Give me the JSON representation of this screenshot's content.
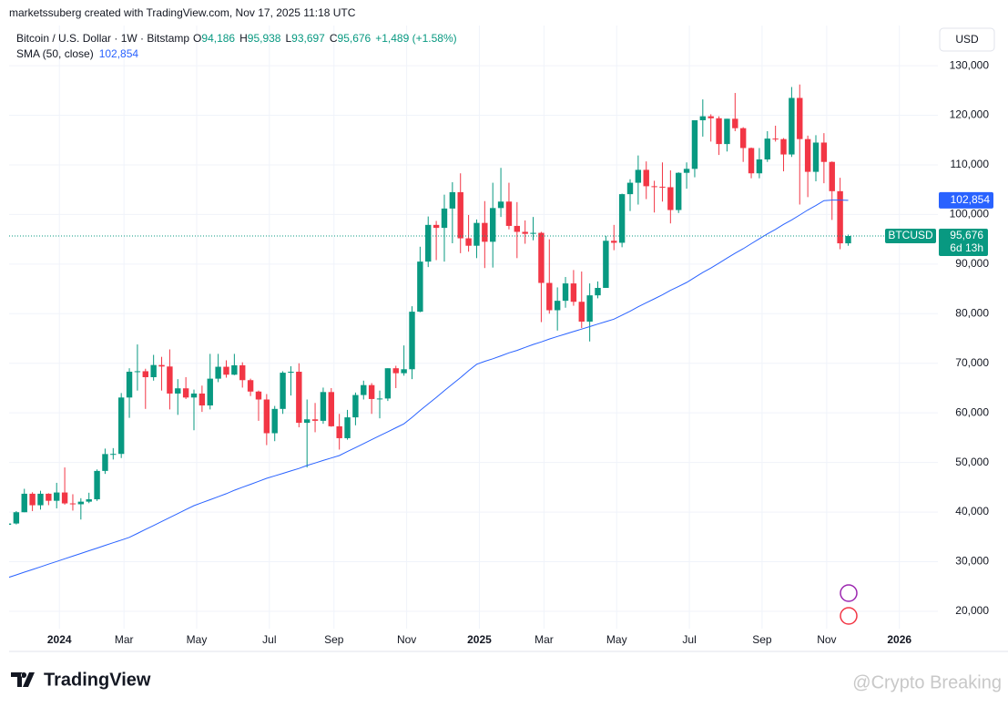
{
  "header": "marketssuberg created with TradingView.com, Nov 17, 2025 11:18 UTC",
  "currency": "USD",
  "brand": "TradingView",
  "watermark": "@Crypto Breaking",
  "chart_data": {
    "type": "candlestick",
    "title": "Bitcoin / U.S. Dollar · 1W · Bitstamp",
    "symbol": "BTCUSD",
    "ohlc_legend": [
      {
        "key": "O",
        "label": "94,186"
      },
      {
        "key": "H",
        "label": "95,938"
      },
      {
        "key": "L",
        "label": "93,697"
      },
      {
        "key": "C",
        "label": "95,676"
      }
    ],
    "change_label": "+1,489 (+1.58%)",
    "last_price_label": "95,676",
    "countdown": "6d 13h",
    "up_color": "#089981",
    "down_color": "#f23645",
    "categories": [
      null,
      null,
      null,
      null,
      null,
      null,
      "2024",
      null,
      null,
      null,
      null,
      null,
      null,
      null,
      "Mar",
      null,
      null,
      null,
      null,
      null,
      null,
      null,
      null,
      "May",
      null,
      null,
      null,
      null,
      null,
      null,
      null,
      null,
      "Jul",
      null,
      null,
      null,
      null,
      null,
      null,
      null,
      "Sep",
      null,
      null,
      null,
      null,
      null,
      null,
      null,
      null,
      "Nov",
      null,
      null,
      null,
      null,
      null,
      null,
      null,
      null,
      "2025",
      null,
      null,
      null,
      null,
      null,
      null,
      null,
      "Mar",
      null,
      null,
      null,
      null,
      null,
      null,
      null,
      null,
      "May",
      null,
      null,
      null,
      null,
      null,
      null,
      null,
      null,
      "Jul",
      null,
      null,
      null,
      null,
      null,
      null,
      null,
      null,
      "Sep",
      null,
      null,
      null,
      null,
      null,
      null,
      null,
      "Nov",
      null,
      null,
      null,
      null,
      null,
      null,
      null,
      null,
      "2026"
    ],
    "open": [
      37450,
      37700,
      39970,
      43700,
      41380,
      43700,
      42280,
      43950,
      41750,
      41580,
      42100,
      42580,
      48300,
      51700,
      51730,
      63100,
      68300,
      68400,
      67200,
      69650,
      69350,
      63900,
      64950,
      63100,
      63900,
      61500,
      66900,
      69300,
      67700,
      69600,
      66600,
      64300,
      62700,
      55900,
      60800,
      68100,
      68300,
      58000,
      58700,
      58400,
      64200,
      57300,
      54900,
      59100,
      63600,
      65600,
      62800,
      62900,
      69000,
      68000,
      68800,
      80400,
      90500,
      97900,
      97300,
      101200,
      104500,
      95200,
      93700,
      98300,
      94500,
      101300,
      102600,
      97700,
      96500,
      96100,
      96300,
      86200,
      80700,
      82600,
      86100,
      82400,
      78400,
      83700,
      85200,
      94700,
      94300,
      104100,
      106400,
      109000,
      105700,
      105600,
      105500,
      100900,
      108400,
      109200,
      119000,
      119800,
      119400,
      114200,
      119300,
      117400,
      113400,
      108300,
      111100,
      115300,
      115200,
      112100,
      123500,
      115200,
      108600,
      114500,
      110600,
      104700,
      94186,
      null,
      null,
      null,
      null,
      null,
      null
    ],
    "high": [
      38400,
      40200,
      44700,
      44000,
      44300,
      43800,
      45900,
      49000,
      43600,
      42800,
      43900,
      48600,
      52800,
      52900,
      64000,
      69000,
      73800,
      68900,
      71700,
      71300,
      72800,
      66800,
      67200,
      64700,
      65500,
      71900,
      71900,
      70600,
      71900,
      70200,
      66900,
      64500,
      63800,
      61400,
      68400,
      69400,
      70000,
      62700,
      62000,
      65100,
      65000,
      59800,
      60600,
      64100,
      66500,
      66000,
      64500,
      69000,
      69500,
      73600,
      81500,
      93500,
      99600,
      98700,
      104000,
      106500,
      108300,
      99900,
      99000,
      102700,
      106400,
      109400,
      106400,
      102500,
      98800,
      99500,
      96500,
      95000,
      85300,
      87400,
      88800,
      88500,
      86100,
      86500,
      95700,
      97900,
      104200,
      107100,
      111900,
      110700,
      106800,
      110500,
      108900,
      108500,
      110500,
      119000,
      123200,
      120200,
      119800,
      119300,
      124500,
      117600,
      113500,
      113400,
      116800,
      117900,
      115400,
      125700,
      126200,
      115900,
      116000,
      116400,
      110700,
      107400,
      95938,
      null,
      null,
      null,
      null,
      null,
      null
    ],
    "low": [
      36700,
      37500,
      39970,
      40200,
      40500,
      41400,
      40750,
      41500,
      40300,
      38500,
      41800,
      42250,
      47700,
      50600,
      50900,
      59000,
      64500,
      60800,
      66500,
      64500,
      60700,
      59600,
      62800,
      56500,
      60200,
      60700,
      66200,
      67100,
      67600,
      65100,
      63400,
      58400,
      53500,
      54300,
      59800,
      63500,
      57100,
      49000,
      56100,
      57800,
      57200,
      52600,
      54600,
      57500,
      62700,
      59800,
      58900,
      62400,
      65000,
      67500,
      66800,
      80300,
      89400,
      90800,
      90500,
      94200,
      92200,
      92500,
      91200,
      89200,
      89300,
      99500,
      97000,
      91200,
      94100,
      94800,
      78300,
      80000,
      76600,
      81200,
      81600,
      77100,
      74400,
      83100,
      85200,
      92800,
      93400,
      100700,
      102000,
      103100,
      100400,
      102600,
      98200,
      100300,
      105200,
      107500,
      115700,
      114700,
      112000,
      112700,
      116800,
      110600,
      107300,
      107300,
      110600,
      114700,
      108700,
      111600,
      102000,
      103500,
      106700,
      106300,
      98900,
      93000,
      93697,
      null,
      null,
      null,
      null,
      null,
      null
    ],
    "close": [
      37700,
      39970,
      43700,
      41380,
      43700,
      42280,
      43950,
      41750,
      41580,
      42100,
      42580,
      48300,
      51700,
      51730,
      63100,
      68300,
      68400,
      67200,
      69650,
      69350,
      63900,
      64950,
      63100,
      63900,
      61500,
      66900,
      69300,
      67700,
      69600,
      66600,
      64300,
      62700,
      55900,
      60800,
      68100,
      68300,
      58000,
      58700,
      58400,
      64200,
      57300,
      54900,
      59100,
      63600,
      65600,
      62800,
      62900,
      69000,
      68000,
      68800,
      80400,
      90500,
      97900,
      97300,
      101200,
      104500,
      95200,
      93700,
      98300,
      94500,
      101300,
      102600,
      97700,
      96500,
      96100,
      96300,
      86200,
      80700,
      82600,
      86100,
      82400,
      78400,
      83700,
      85200,
      94700,
      94300,
      104100,
      106400,
      109000,
      105700,
      105600,
      105500,
      100900,
      108400,
      109200,
      119000,
      119800,
      119400,
      114200,
      119300,
      117400,
      113400,
      108300,
      111100,
      115300,
      115200,
      112100,
      123500,
      115200,
      108600,
      114500,
      110600,
      104700,
      94186,
      95676,
      null,
      null,
      null,
      null,
      null,
      null
    ],
    "sma": {
      "name": "SMA (50, close)",
      "color": "#2962ff",
      "value_label": "102,854",
      "values": [
        26800,
        27340,
        27880,
        28420,
        28960,
        29500,
        30040,
        30580,
        31120,
        31660,
        32200,
        32740,
        33280,
        33820,
        34360,
        34900,
        35700,
        36500,
        37300,
        38100,
        38900,
        39700,
        40500,
        41300,
        41900,
        42500,
        43100,
        43700,
        44400,
        45000,
        45600,
        46200,
        46800,
        47300,
        47800,
        48300,
        48800,
        49400,
        49900,
        50400,
        50900,
        51400,
        52200,
        53000,
        53800,
        54600,
        55400,
        56200,
        57000,
        57800,
        59100,
        60500,
        61800,
        63100,
        64500,
        65800,
        67100,
        68500,
        69800,
        70400,
        70900,
        71500,
        72100,
        72600,
        73200,
        73800,
        74300,
        74900,
        75400,
        75900,
        76400,
        76900,
        77400,
        77900,
        78400,
        78900,
        79700,
        80500,
        81400,
        82200,
        83000,
        83800,
        84700,
        85500,
        86300,
        87300,
        88300,
        89200,
        90200,
        91200,
        92200,
        93100,
        94100,
        95100,
        96100,
        97000,
        98000,
        98900,
        99900,
        100900,
        101800,
        102800,
        102900,
        102900,
        102854,
        null,
        null,
        null,
        null,
        null,
        null
      ]
    },
    "ylim": [
      16500,
      138100
    ],
    "yticks": [
      {
        "value": 20000,
        "label": "20,000"
      },
      {
        "value": 30000,
        "label": "30,000"
      },
      {
        "value": 40000,
        "label": "40,000"
      },
      {
        "value": 50000,
        "label": "50,000"
      },
      {
        "value": 60000,
        "label": "60,000"
      },
      {
        "value": 70000,
        "label": "70,000"
      },
      {
        "value": 80000,
        "label": "80,000"
      },
      {
        "value": 90000,
        "label": "90,000"
      },
      {
        "value": 100000,
        "label": "100,000"
      },
      {
        "value": 110000,
        "label": "110,000"
      },
      {
        "value": 120000,
        "label": "120,000"
      },
      {
        "value": 130000,
        "label": "130,000"
      }
    ],
    "grid": true
  }
}
